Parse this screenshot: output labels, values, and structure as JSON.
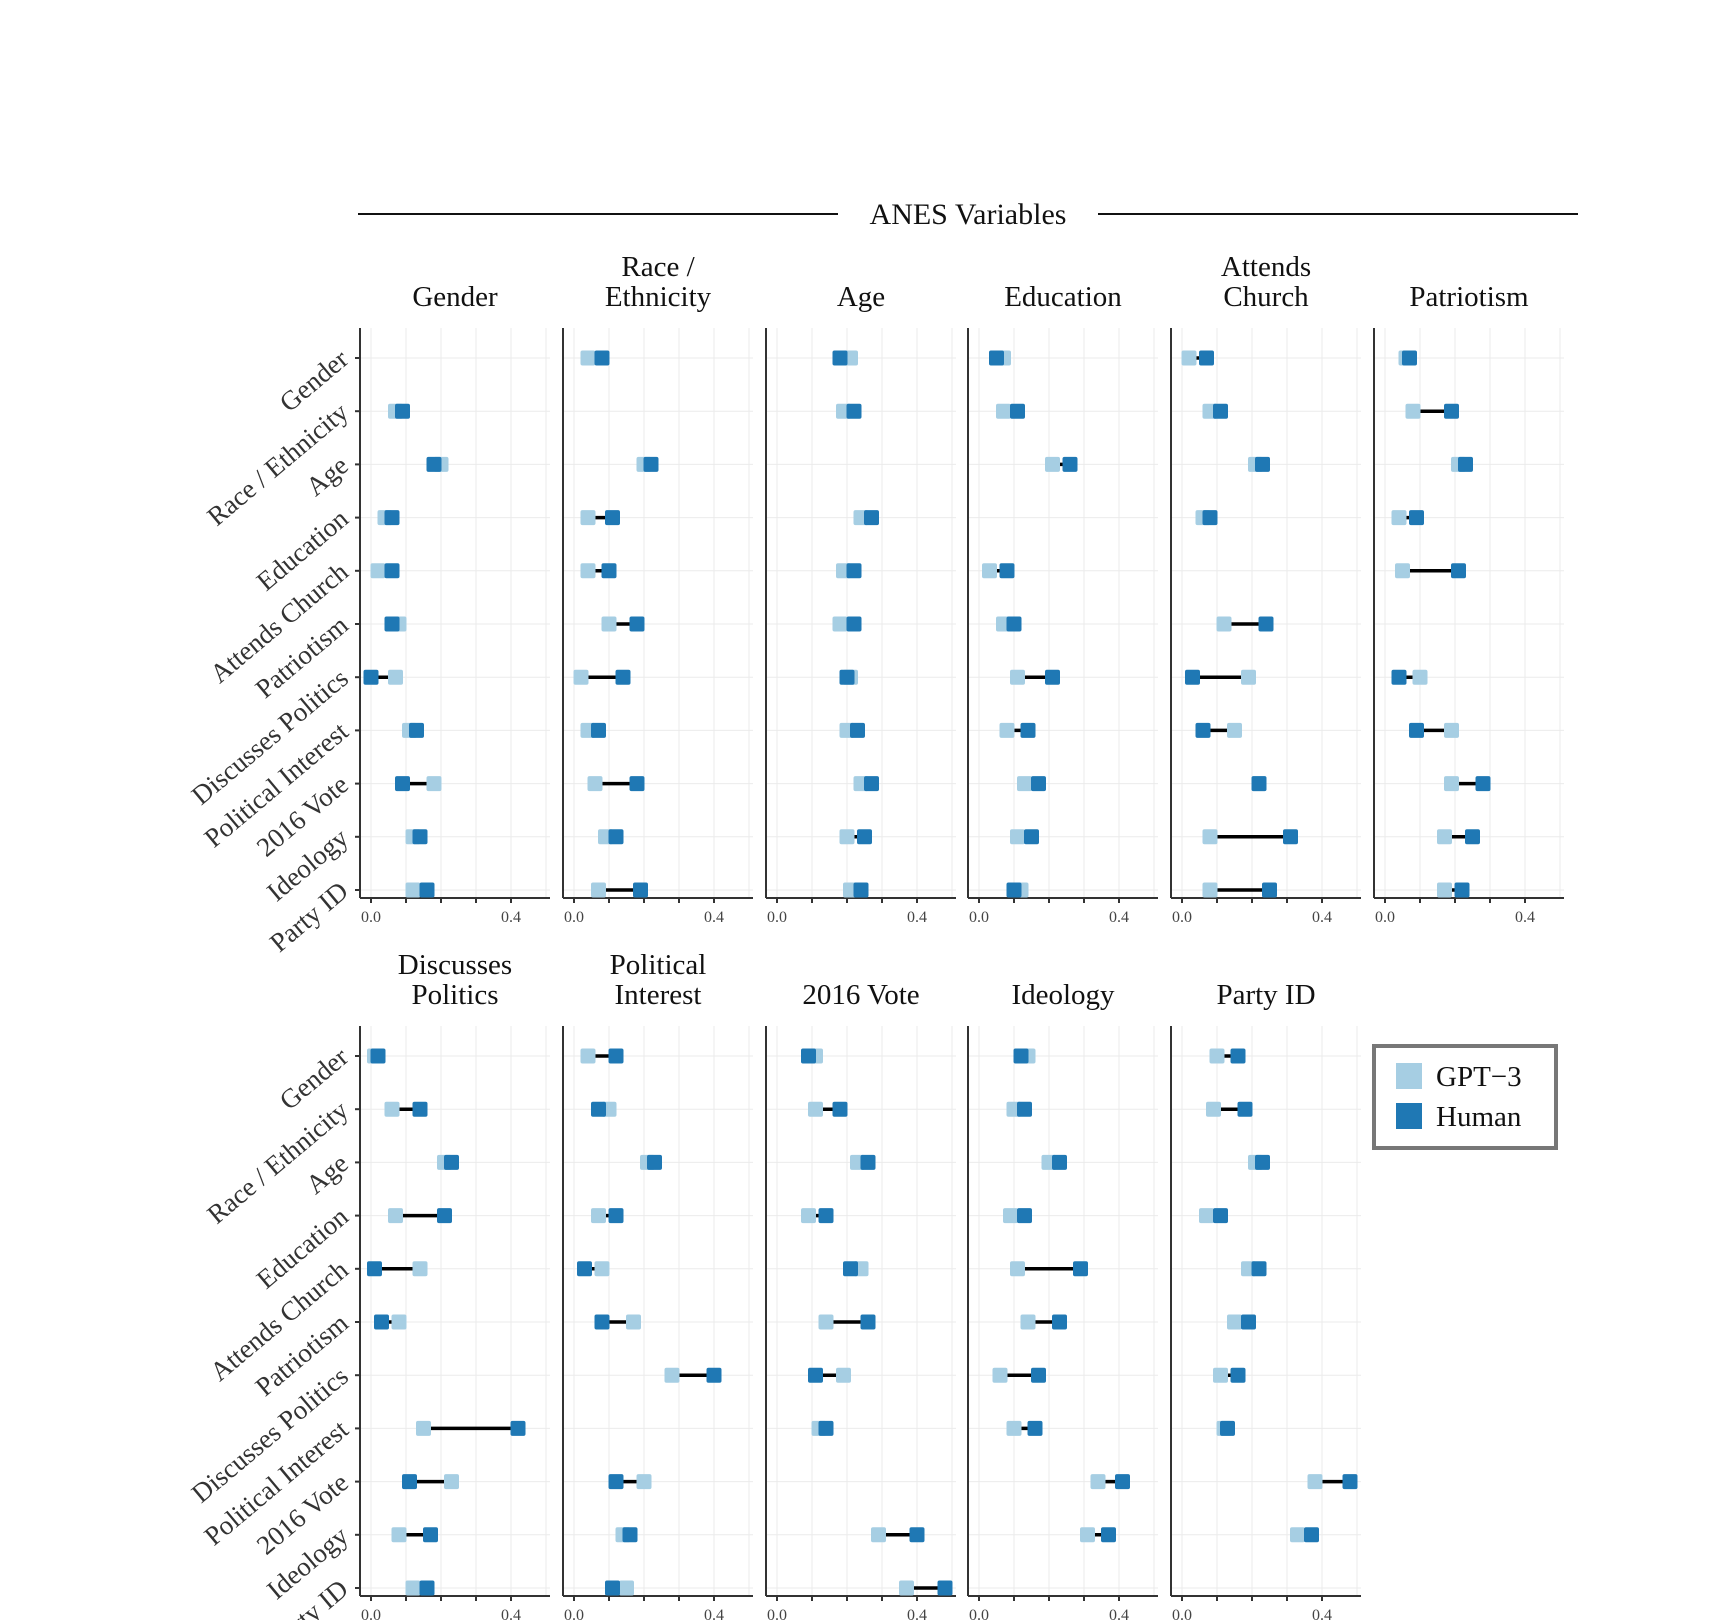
{
  "header_title": "ANES Variables",
  "colors": {
    "gpt3": "#a6cee3",
    "human": "#1f78b4",
    "line": "#000000",
    "grid": "#ebebeb",
    "axis": "#333333"
  },
  "legend": {
    "items": [
      {
        "label": "GPT−3",
        "series": "gpt3"
      },
      {
        "label": "Human",
        "series": "human"
      }
    ]
  },
  "x_ticks": [
    "0.0",
    "0.4"
  ],
  "chart_data": {
    "type": "dumbbell",
    "xlim": [
      -0.02,
      0.5
    ],
    "y_categories": [
      "Gender",
      "Race / Ethnicity",
      "Age",
      "Education",
      "Attends Church",
      "Patriotism",
      "Discusses Politics",
      "Political Interest",
      "2016 Vote",
      "Ideology",
      "Party ID"
    ],
    "series_names": [
      "GPT−3",
      "Human"
    ],
    "facets": [
      {
        "title_lines": [
          "Gender"
        ],
        "row": 0,
        "col": 0,
        "gpt3": [
          null,
          0.07,
          0.2,
          0.04,
          0.02,
          0.08,
          0.07,
          0.11,
          0.18,
          0.12,
          0.12
        ],
        "human": [
          null,
          0.09,
          0.18,
          0.06,
          0.06,
          0.06,
          0.0,
          0.13,
          0.09,
          0.14,
          0.16
        ]
      },
      {
        "title_lines": [
          "Race /",
          "Ethnicity"
        ],
        "row": 0,
        "col": 1,
        "gpt3": [
          0.04,
          null,
          0.2,
          0.04,
          0.04,
          0.1,
          0.02,
          0.04,
          0.06,
          0.09,
          0.07
        ],
        "human": [
          0.08,
          null,
          0.22,
          0.11,
          0.1,
          0.18,
          0.14,
          0.07,
          0.18,
          0.12,
          0.19
        ]
      },
      {
        "title_lines": [
          "Age"
        ],
        "row": 0,
        "col": 2,
        "gpt3": [
          0.21,
          0.19,
          null,
          0.24,
          0.19,
          0.18,
          0.21,
          0.2,
          0.24,
          0.2,
          0.21
        ],
        "human": [
          0.18,
          0.22,
          null,
          0.27,
          0.22,
          0.22,
          0.2,
          0.23,
          0.27,
          0.25,
          0.24
        ]
      },
      {
        "title_lines": [
          "Education"
        ],
        "row": 0,
        "col": 3,
        "gpt3": [
          0.07,
          0.07,
          0.21,
          null,
          0.03,
          0.07,
          0.11,
          0.08,
          0.13,
          0.11,
          0.12
        ],
        "human": [
          0.05,
          0.11,
          0.26,
          null,
          0.08,
          0.1,
          0.21,
          0.14,
          0.17,
          0.15,
          0.1
        ]
      },
      {
        "title_lines": [
          "Attends",
          "Church"
        ],
        "row": 0,
        "col": 4,
        "gpt3": [
          0.02,
          0.08,
          0.21,
          0.06,
          null,
          0.12,
          0.19,
          0.15,
          0.22,
          0.08,
          0.08
        ],
        "human": [
          0.07,
          0.11,
          0.23,
          0.08,
          null,
          0.24,
          0.03,
          0.06,
          0.22,
          0.31,
          0.25
        ]
      },
      {
        "title_lines": [
          "Patriotism"
        ],
        "row": 0,
        "col": 5,
        "gpt3": [
          0.06,
          0.08,
          0.21,
          0.04,
          0.05,
          null,
          0.1,
          0.19,
          0.19,
          0.17,
          0.17
        ],
        "human": [
          0.07,
          0.19,
          0.23,
          0.09,
          0.21,
          null,
          0.04,
          0.09,
          0.28,
          0.25,
          0.22
        ]
      },
      {
        "title_lines": [
          "Discusses",
          "Politics"
        ],
        "row": 1,
        "col": 0,
        "gpt3": [
          0.01,
          0.06,
          0.21,
          0.07,
          0.14,
          0.08,
          null,
          0.15,
          0.23,
          0.08,
          0.12
        ],
        "human": [
          0.02,
          0.14,
          0.23,
          0.21,
          0.01,
          0.03,
          null,
          0.42,
          0.11,
          0.17,
          0.16
        ]
      },
      {
        "title_lines": [
          "Political",
          "Interest"
        ],
        "row": 1,
        "col": 1,
        "gpt3": [
          0.04,
          0.1,
          0.21,
          0.07,
          0.08,
          0.17,
          0.28,
          null,
          0.2,
          0.14,
          0.15
        ],
        "human": [
          0.12,
          0.07,
          0.23,
          0.12,
          0.03,
          0.08,
          0.4,
          null,
          0.12,
          0.16,
          0.11
        ]
      },
      {
        "title_lines": [
          "2016 Vote"
        ],
        "row": 1,
        "col": 2,
        "gpt3": [
          0.11,
          0.11,
          0.23,
          0.09,
          0.24,
          0.14,
          0.19,
          0.12,
          null,
          0.29,
          0.37
        ],
        "human": [
          0.09,
          0.18,
          0.26,
          0.14,
          0.21,
          0.26,
          0.11,
          0.14,
          null,
          0.4,
          0.48
        ]
      },
      {
        "title_lines": [
          "Ideology"
        ],
        "row": 1,
        "col": 3,
        "gpt3": [
          0.14,
          0.1,
          0.2,
          0.09,
          0.11,
          0.14,
          0.06,
          0.1,
          0.34,
          0.31,
          null
        ],
        "human": [
          0.12,
          0.13,
          0.23,
          0.13,
          0.29,
          0.23,
          0.17,
          0.16,
          0.41,
          0.37,
          null
        ]
      },
      {
        "title_lines": [
          "Party ID"
        ],
        "row": 1,
        "col": 4,
        "gpt3": [
          0.1,
          0.09,
          0.21,
          0.07,
          0.19,
          0.15,
          0.11,
          0.12,
          0.38,
          0.33,
          null
        ],
        "human": [
          0.16,
          0.18,
          0.23,
          0.11,
          0.22,
          0.19,
          0.16,
          0.13,
          0.48,
          0.37,
          null
        ]
      }
    ]
  }
}
